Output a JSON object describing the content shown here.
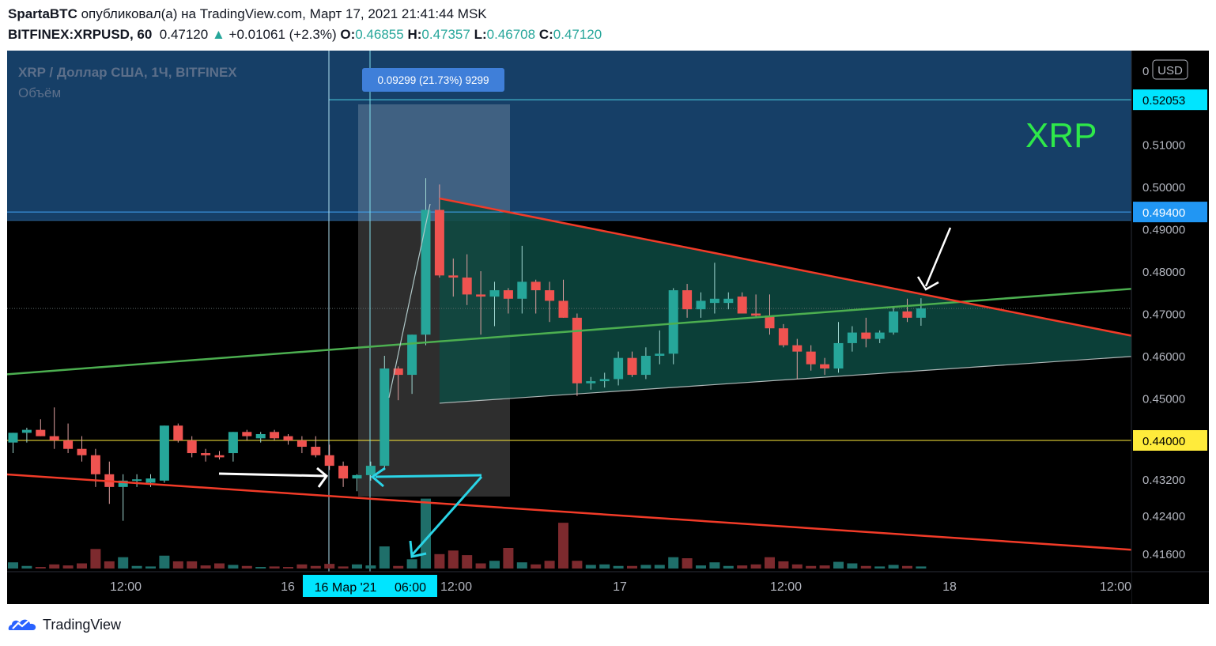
{
  "header": {
    "author": "SpartaBTC",
    "published_text": "опубликовал(а) на TradingView.com, Март 17, 2021 21:41:44 MSK",
    "symbol": "BITFINEX:XRPUSD, 60",
    "last": "0.47120",
    "arrow": "▲",
    "change": "+0.01061 (+2.3%)",
    "o_label": "O:",
    "o_value": "0.46855",
    "h_label": "H:",
    "h_value": "0.47357",
    "l_label": "L:",
    "l_value": "0.46708",
    "c_label": "C:",
    "c_value": "0.47120"
  },
  "footer": {
    "brand": "TradingView",
    "logo_icon": "tradingview-logo-icon"
  },
  "chart_data": {
    "type": "candlestick",
    "legend": {
      "title": "XRP / Доллар США, 1Ч, BITFINEX",
      "volume_label": "Объём"
    },
    "watermark": "XRP",
    "currency_badge": "USD",
    "colors": {
      "up": "#26a69a",
      "down": "#ef5350",
      "up_volume": "#1f6f6a",
      "down_volume": "#7d2a2e",
      "resistance_zone": "#163f67",
      "triangle_fill": "#0d4a42",
      "trend_green": "#4caf50",
      "trend_red": "#f23b28",
      "label_cyan": "#00e5ff",
      "label_blue": "#2196f3",
      "label_yellow": "#ffeb3b"
    },
    "y_axis": {
      "labels": [
        "0.51000",
        "0.50000",
        "0.49000",
        "0.48000",
        "0.47000",
        "0.46000",
        "0.45000",
        "0.43200",
        "0.42400",
        "0.41600"
      ],
      "top_label": "0",
      "price_labels": [
        {
          "text": "0.52053",
          "style": "cyan"
        },
        {
          "text": "0.49400",
          "style": "blue"
        },
        {
          "text": "0.44000",
          "style": "yellow"
        }
      ]
    },
    "x_axis": {
      "ticks": [
        "12:00",
        "16",
        "12:00",
        "17",
        "12:00",
        "18",
        "12:00"
      ],
      "crosshair_date": "16 Мар '21",
      "crosshair_time": "06:00"
    },
    "measure_label": "0.09299 (21.73%) 9299",
    "candles": [
      {
        "o": 0.4395,
        "h": 0.4418,
        "l": 0.437,
        "c": 0.4418,
        "v": 12
      },
      {
        "o": 0.4418,
        "h": 0.443,
        "l": 0.4395,
        "c": 0.4425,
        "v": 5
      },
      {
        "o": 0.4425,
        "h": 0.445,
        "l": 0.441,
        "c": 0.441,
        "v": 3
      },
      {
        "o": 0.441,
        "h": 0.4478,
        "l": 0.438,
        "c": 0.44,
        "v": 8
      },
      {
        "o": 0.44,
        "h": 0.444,
        "l": 0.437,
        "c": 0.438,
        "v": 6
      },
      {
        "o": 0.438,
        "h": 0.441,
        "l": 0.435,
        "c": 0.4365,
        "v": 10
      },
      {
        "o": 0.4365,
        "h": 0.438,
        "l": 0.429,
        "c": 0.432,
        "v": 38
      },
      {
        "o": 0.432,
        "h": 0.435,
        "l": 0.425,
        "c": 0.429,
        "v": 14
      },
      {
        "o": 0.429,
        "h": 0.432,
        "l": 0.421,
        "c": 0.4305,
        "v": 22
      },
      {
        "o": 0.4305,
        "h": 0.432,
        "l": 0.429,
        "c": 0.4308,
        "v": 5
      },
      {
        "o": 0.43,
        "h": 0.432,
        "l": 0.429,
        "c": 0.431,
        "v": 4
      },
      {
        "o": 0.4305,
        "h": 0.4435,
        "l": 0.43,
        "c": 0.4435,
        "v": 25
      },
      {
        "o": 0.4435,
        "h": 0.444,
        "l": 0.4395,
        "c": 0.44,
        "v": 14
      },
      {
        "o": 0.44,
        "h": 0.441,
        "l": 0.436,
        "c": 0.437,
        "v": 14
      },
      {
        "o": 0.437,
        "h": 0.438,
        "l": 0.435,
        "c": 0.4365,
        "v": 6
      },
      {
        "o": 0.4365,
        "h": 0.4375,
        "l": 0.4355,
        "c": 0.436,
        "v": 10
      },
      {
        "o": 0.437,
        "h": 0.442,
        "l": 0.435,
        "c": 0.442,
        "v": 7
      },
      {
        "o": 0.442,
        "h": 0.4425,
        "l": 0.44,
        "c": 0.441,
        "v": 5
      },
      {
        "o": 0.4405,
        "h": 0.442,
        "l": 0.4395,
        "c": 0.4415,
        "v": 3
      },
      {
        "o": 0.442,
        "h": 0.4425,
        "l": 0.44,
        "c": 0.4405,
        "v": 4
      },
      {
        "o": 0.441,
        "h": 0.4415,
        "l": 0.439,
        "c": 0.44,
        "v": 3
      },
      {
        "o": 0.44,
        "h": 0.441,
        "l": 0.437,
        "c": 0.4385,
        "v": 8
      },
      {
        "o": 0.4385,
        "h": 0.441,
        "l": 0.436,
        "c": 0.4365,
        "v": 5
      },
      {
        "o": 0.4365,
        "h": 0.439,
        "l": 0.433,
        "c": 0.434,
        "v": 9
      },
      {
        "o": 0.434,
        "h": 0.435,
        "l": 0.429,
        "c": 0.431,
        "v": 4
      },
      {
        "o": 0.431,
        "h": 0.432,
        "l": 0.428,
        "c": 0.4318,
        "v": 8
      },
      {
        "o": 0.4318,
        "h": 0.435,
        "l": 0.4305,
        "c": 0.434,
        "v": 6
      },
      {
        "o": 0.434,
        "h": 0.46,
        "l": 0.433,
        "c": 0.457,
        "v": 43
      },
      {
        "o": 0.457,
        "h": 0.4575,
        "l": 0.4495,
        "c": 0.4555,
        "v": 5
      },
      {
        "o": 0.4555,
        "h": 0.465,
        "l": 0.451,
        "c": 0.465,
        "v": 18
      },
      {
        "o": 0.465,
        "h": 0.502,
        "l": 0.4625,
        "c": 0.4945,
        "v": 136
      },
      {
        "o": 0.4945,
        "h": 0.5005,
        "l": 0.4785,
        "c": 0.479,
        "v": 28
      },
      {
        "o": 0.479,
        "h": 0.483,
        "l": 0.474,
        "c": 0.4785,
        "v": 35
      },
      {
        "o": 0.4785,
        "h": 0.484,
        "l": 0.472,
        "c": 0.4745,
        "v": 26
      },
      {
        "o": 0.4745,
        "h": 0.48,
        "l": 0.465,
        "c": 0.474,
        "v": 10
      },
      {
        "o": 0.474,
        "h": 0.4775,
        "l": 0.467,
        "c": 0.4755,
        "v": 15
      },
      {
        "o": 0.4755,
        "h": 0.476,
        "l": 0.47,
        "c": 0.4735,
        "v": 40
      },
      {
        "o": 0.4735,
        "h": 0.486,
        "l": 0.47,
        "c": 0.4775,
        "v": 12
      },
      {
        "o": 0.4775,
        "h": 0.478,
        "l": 0.47,
        "c": 0.4755,
        "v": 8
      },
      {
        "o": 0.4755,
        "h": 0.4775,
        "l": 0.468,
        "c": 0.473,
        "v": 15
      },
      {
        "o": 0.473,
        "h": 0.478,
        "l": 0.469,
        "c": 0.469,
        "v": 89
      },
      {
        "o": 0.469,
        "h": 0.47,
        "l": 0.4505,
        "c": 0.4535,
        "v": 15
      },
      {
        "o": 0.4535,
        "h": 0.455,
        "l": 0.452,
        "c": 0.454,
        "v": 7
      },
      {
        "o": 0.454,
        "h": 0.456,
        "l": 0.4525,
        "c": 0.4545,
        "v": 8
      },
      {
        "o": 0.4545,
        "h": 0.461,
        "l": 0.453,
        "c": 0.4595,
        "v": 5
      },
      {
        "o": 0.4595,
        "h": 0.461,
        "l": 0.455,
        "c": 0.4555,
        "v": 5
      },
      {
        "o": 0.4555,
        "h": 0.462,
        "l": 0.4545,
        "c": 0.46,
        "v": 7
      },
      {
        "o": 0.46,
        "h": 0.466,
        "l": 0.458,
        "c": 0.4605,
        "v": 7
      },
      {
        "o": 0.4605,
        "h": 0.476,
        "l": 0.458,
        "c": 0.4755,
        "v": 22
      },
      {
        "o": 0.4755,
        "h": 0.477,
        "l": 0.469,
        "c": 0.471,
        "v": 20
      },
      {
        "o": 0.471,
        "h": 0.475,
        "l": 0.469,
        "c": 0.473,
        "v": 6
      },
      {
        "o": 0.4725,
        "h": 0.482,
        "l": 0.47,
        "c": 0.4735,
        "v": 12
      },
      {
        "o": 0.4725,
        "h": 0.475,
        "l": 0.471,
        "c": 0.4735,
        "v": 5
      },
      {
        "o": 0.474,
        "h": 0.475,
        "l": 0.47,
        "c": 0.47,
        "v": 6
      },
      {
        "o": 0.47,
        "h": 0.4745,
        "l": 0.469,
        "c": 0.4695,
        "v": 8
      },
      {
        "o": 0.4695,
        "h": 0.4745,
        "l": 0.465,
        "c": 0.4665,
        "v": 22
      },
      {
        "o": 0.4665,
        "h": 0.4675,
        "l": 0.462,
        "c": 0.4625,
        "v": 14
      },
      {
        "o": 0.4625,
        "h": 0.464,
        "l": 0.4545,
        "c": 0.461,
        "v": 8
      },
      {
        "o": 0.461,
        "h": 0.4625,
        "l": 0.4565,
        "c": 0.458,
        "v": 5
      },
      {
        "o": 0.458,
        "h": 0.4595,
        "l": 0.4555,
        "c": 0.457,
        "v": 6
      },
      {
        "o": 0.457,
        "h": 0.468,
        "l": 0.456,
        "c": 0.463,
        "v": 13
      },
      {
        "o": 0.463,
        "h": 0.467,
        "l": 0.461,
        "c": 0.4655,
        "v": 10
      },
      {
        "o": 0.4655,
        "h": 0.469,
        "l": 0.462,
        "c": 0.464,
        "v": 5
      },
      {
        "o": 0.464,
        "h": 0.466,
        "l": 0.463,
        "c": 0.4655,
        "v": 4
      },
      {
        "o": 0.4655,
        "h": 0.4715,
        "l": 0.465,
        "c": 0.4705,
        "v": 7
      },
      {
        "o": 0.4705,
        "h": 0.4735,
        "l": 0.468,
        "c": 0.469,
        "v": 5
      },
      {
        "o": 0.469,
        "h": 0.4736,
        "l": 0.4671,
        "c": 0.4712,
        "v": 4
      }
    ],
    "annotations": {
      "resistance_zone_bottom": 0.492,
      "horizontal_lines": [
        0.52053,
        0.494,
        0.44
      ],
      "triangle": {
        "top_left": [
          31,
          0.4972
        ],
        "top_right": [
          82,
          0.4643
        ],
        "bottom_left": [
          31,
          0.4488
        ],
        "bottom_right": [
          82,
          0.46
        ]
      },
      "green_trendline": [
        [
          -0.6,
          0.4556
        ],
        [
          82,
          0.476
        ]
      ],
      "red_trendline_upper": [
        [
          31,
          0.4972
        ],
        [
          82,
          0.4643
        ]
      ],
      "red_trendline_lower": [
        [
          -0.6,
          0.432
        ],
        [
          82,
          0.414
        ]
      ]
    }
  }
}
